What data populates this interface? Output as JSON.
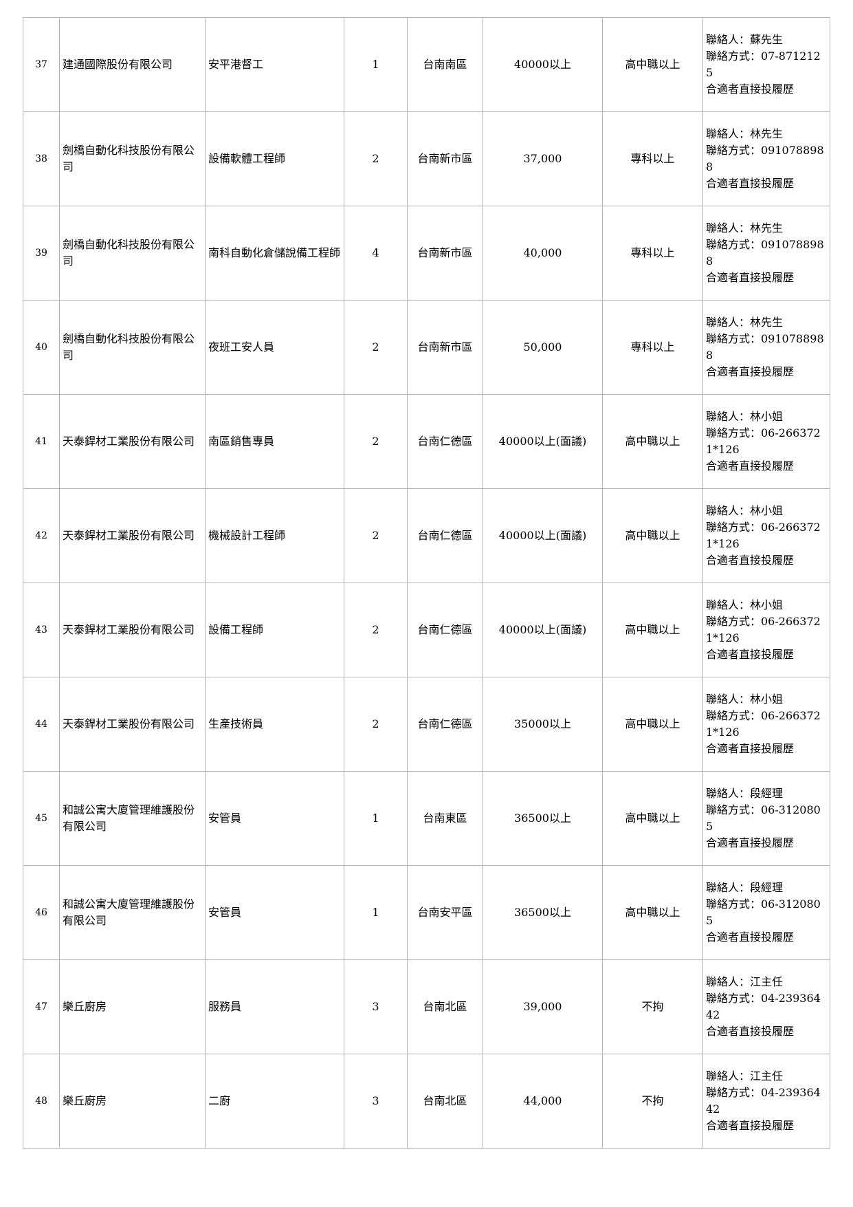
{
  "rows": [
    {
      "no": "37",
      "company": "建通國際股份有限公司",
      "job": "安平港督工",
      "count": "1",
      "area": "台南南區",
      "salary": "40000以上",
      "education": "高中職以上",
      "contact_person": "聯絡人：蘇先生",
      "contact_method": "聯絡方式：07-8712125",
      "apply": "合適者直接投履歷"
    },
    {
      "no": "38",
      "company": "劍橋自動化科技股份有限公司",
      "job": "設備軟體工程師",
      "count": "2",
      "area": "台南新市區",
      "salary": "37,000",
      "education": "專科以上",
      "contact_person": "聯絡人：林先生",
      "contact_method": "聯絡方式：0910788988",
      "apply": "合適者直接投履歷"
    },
    {
      "no": "39",
      "company": "劍橋自動化科技股份有限公司",
      "job": "南科自動化倉儲說備工程師",
      "count": "4",
      "area": "台南新市區",
      "salary": "40,000",
      "education": "專科以上",
      "contact_person": "聯絡人：林先生",
      "contact_method": "聯絡方式：0910788988",
      "apply": "合適者直接投履歷"
    },
    {
      "no": "40",
      "company": "劍橋自動化科技股份有限公司",
      "job": "夜班工安人員",
      "count": "2",
      "area": "台南新市區",
      "salary": "50,000",
      "education": "專科以上",
      "contact_person": "聯絡人：林先生",
      "contact_method": "聯絡方式：0910788988",
      "apply": "合適者直接投履歷"
    },
    {
      "no": "41",
      "company": "天泰銲材工業股份有限公司",
      "job": "南區銷售專員",
      "count": "2",
      "area": "台南仁德區",
      "salary": "40000以上(面議)",
      "education": "高中職以上",
      "contact_person": "聯絡人：林小姐",
      "contact_method": "聯絡方式：06-2663721*126",
      "apply": "合適者直接投履歷"
    },
    {
      "no": "42",
      "company": "天泰銲材工業股份有限公司",
      "job": "機械設計工程師",
      "count": "2",
      "area": "台南仁德區",
      "salary": "40000以上(面議)",
      "education": "高中職以上",
      "contact_person": "聯絡人：林小姐",
      "contact_method": "聯絡方式：06-2663721*126",
      "apply": "合適者直接投履歷"
    },
    {
      "no": "43",
      "company": "天泰銲材工業股份有限公司",
      "job": "設備工程師",
      "count": "2",
      "area": "台南仁德區",
      "salary": "40000以上(面議)",
      "education": "高中職以上",
      "contact_person": "聯絡人：林小姐",
      "contact_method": "聯絡方式：06-2663721*126",
      "apply": "合適者直接投履歷"
    },
    {
      "no": "44",
      "company": "天泰銲材工業股份有限公司",
      "job": "生產技術員",
      "count": "2",
      "area": "台南仁德區",
      "salary": "35000以上",
      "education": "高中職以上",
      "contact_person": "聯絡人：林小姐",
      "contact_method": "聯絡方式：06-2663721*126",
      "apply": "合適者直接投履歷"
    },
    {
      "no": "45",
      "company": "和誠公寓大廈管理維護股份有限公司",
      "job": "安管員",
      "count": "1",
      "area": "台南東區",
      "salary": "36500以上",
      "education": "高中職以上",
      "contact_person": "聯絡人：段經理",
      "contact_method": "聯絡方式：06-3120805",
      "apply": "合適者直接投履歷"
    },
    {
      "no": "46",
      "company": "和誠公寓大廈管理維護股份有限公司",
      "job": "安管員",
      "count": "1",
      "area": "台南安平區",
      "salary": "36500以上",
      "education": "高中職以上",
      "contact_person": "聯絡人：段經理",
      "contact_method": "聯絡方式：06-3120805",
      "apply": "合適者直接投履歷"
    },
    {
      "no": "47",
      "company": "樂丘廚房",
      "job": "服務員",
      "count": "3",
      "area": "台南北區",
      "salary": "39,000",
      "education": "不拘",
      "contact_person": "聯絡人：江主任",
      "contact_method": "聯絡方式：04-23936442",
      "apply": "合適者直接投履歷"
    },
    {
      "no": "48",
      "company": "樂丘廚房",
      "job": "二廚",
      "count": "3",
      "area": "台南北區",
      "salary": "44,000",
      "education": "不拘",
      "contact_person": "聯絡人：江主任",
      "contact_method": "聯絡方式：04-23936442",
      "apply": "合適者直接投履歷"
    }
  ]
}
